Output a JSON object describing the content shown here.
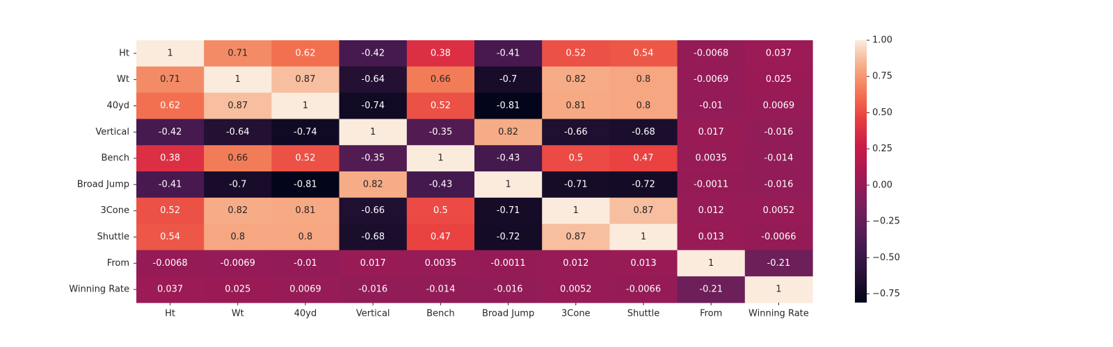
{
  "chart_data": {
    "type": "heatmap",
    "title": "",
    "xlabel": "",
    "ylabel": "",
    "x_categories": [
      "Ht",
      "Wt",
      "40yd",
      "Vertical",
      "Bench",
      "Broad Jump",
      "3Cone",
      "Shuttle",
      "From",
      "Winning Rate"
    ],
    "y_categories": [
      "Ht",
      "Wt",
      "40yd",
      "Vertical",
      "Bench",
      "Broad Jump",
      "3Cone",
      "Shuttle",
      "From",
      "Winning Rate"
    ],
    "values": [
      [
        1,
        0.71,
        0.62,
        -0.42,
        0.38,
        -0.41,
        0.52,
        0.54,
        -0.0068,
        0.037
      ],
      [
        0.71,
        1,
        0.87,
        -0.64,
        0.66,
        -0.7,
        0.82,
        0.8,
        -0.0069,
        0.025
      ],
      [
        0.62,
        0.87,
        1,
        -0.74,
        0.52,
        -0.81,
        0.81,
        0.8,
        -0.01,
        0.0069
      ],
      [
        -0.42,
        -0.64,
        -0.74,
        1,
        -0.35,
        0.82,
        -0.66,
        -0.68,
        0.017,
        -0.016
      ],
      [
        0.38,
        0.66,
        0.52,
        -0.35,
        1,
        -0.43,
        0.5,
        0.47,
        0.0035,
        -0.014
      ],
      [
        -0.41,
        -0.7,
        -0.81,
        0.82,
        -0.43,
        1,
        -0.71,
        -0.72,
        -0.0011,
        -0.016
      ],
      [
        0.52,
        0.82,
        0.81,
        -0.66,
        0.5,
        -0.71,
        1,
        0.87,
        0.012,
        0.0052
      ],
      [
        0.54,
        0.8,
        0.8,
        -0.68,
        0.47,
        -0.72,
        0.87,
        1,
        0.013,
        -0.0066
      ],
      [
        -0.0068,
        -0.0069,
        -0.01,
        0.017,
        0.0035,
        -0.0011,
        0.012,
        0.013,
        1,
        -0.21
      ],
      [
        0.037,
        0.025,
        0.0069,
        -0.016,
        -0.014,
        -0.016,
        0.0052,
        -0.0066,
        -0.21,
        1
      ]
    ],
    "cell_labels": [
      [
        "1",
        "0.71",
        "0.62",
        "-0.42",
        "0.38",
        "-0.41",
        "0.52",
        "0.54",
        "-0.0068",
        "0.037"
      ],
      [
        "0.71",
        "1",
        "0.87",
        "-0.64",
        "0.66",
        "-0.7",
        "0.82",
        "0.8",
        "-0.0069",
        "0.025"
      ],
      [
        "0.62",
        "0.87",
        "1",
        "-0.74",
        "0.52",
        "-0.81",
        "0.81",
        "0.8",
        "-0.01",
        "0.0069"
      ],
      [
        "-0.42",
        "-0.64",
        "-0.74",
        "1",
        "-0.35",
        "0.82",
        "-0.66",
        "-0.68",
        "0.017",
        "-0.016"
      ],
      [
        "0.38",
        "0.66",
        "0.52",
        "-0.35",
        "1",
        "-0.43",
        "0.5",
        "0.47",
        "0.0035",
        "-0.014"
      ],
      [
        "-0.41",
        "-0.7",
        "-0.81",
        "0.82",
        "-0.43",
        "1",
        "-0.71",
        "-0.72",
        "-0.0011",
        "-0.016"
      ],
      [
        "0.52",
        "0.82",
        "0.81",
        "-0.66",
        "0.5",
        "-0.71",
        "1",
        "0.87",
        "0.012",
        "0.0052"
      ],
      [
        "0.54",
        "0.8",
        "0.8",
        "-0.68",
        "0.47",
        "-0.72",
        "0.87",
        "1",
        "0.013",
        "-0.0066"
      ],
      [
        "-0.0068",
        "-0.0069",
        "-0.01",
        "0.017",
        "0.0035",
        "-0.0011",
        "0.012",
        "0.013",
        "1",
        "-0.21"
      ],
      [
        "0.037",
        "0.025",
        "0.0069",
        "-0.016",
        "-0.014",
        "-0.016",
        "0.0052",
        "-0.0066",
        "-0.21",
        "1"
      ]
    ],
    "colorbar": {
      "min": -0.81,
      "max": 1.0,
      "ticks": [
        -0.75,
        -0.5,
        -0.25,
        0,
        0.25,
        0.5,
        0.75,
        1.0
      ],
      "tick_labels": [
        "−0.75",
        "−0.50",
        "−0.25",
        "0.00",
        "0.25",
        "0.50",
        "0.75",
        "1.00"
      ],
      "colormap": "rocket"
    },
    "grid": false,
    "legend": "colorbar-right"
  }
}
